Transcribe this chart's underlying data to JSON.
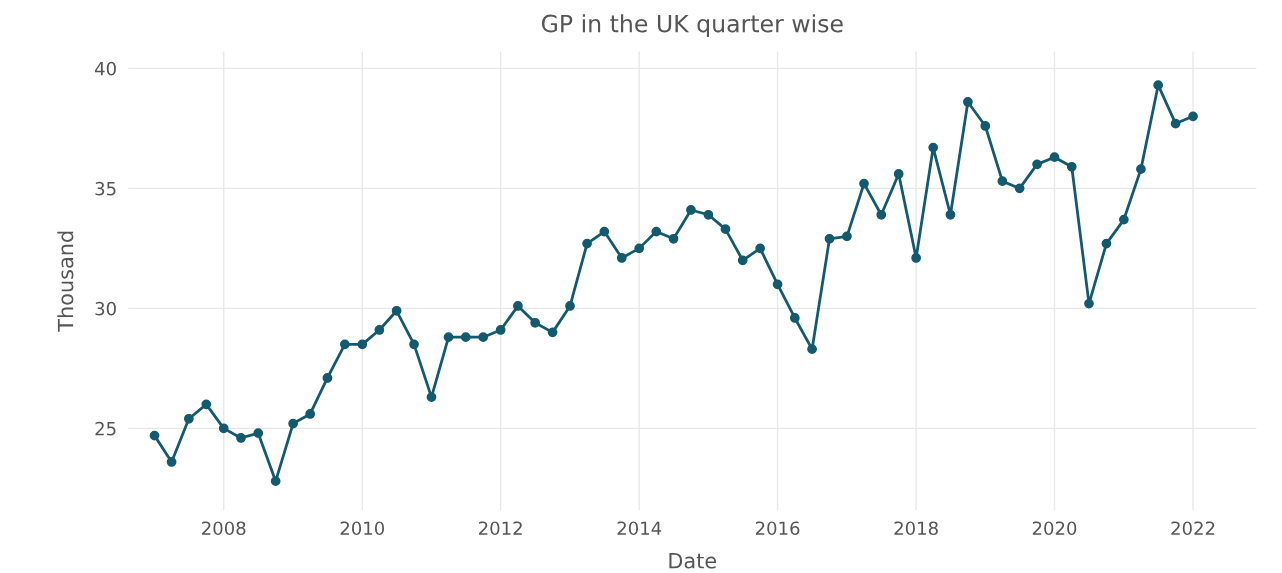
{
  "chart_data": {
    "type": "line",
    "title": "GP in the UK quarter wise",
    "xlabel": "Date",
    "ylabel": "Thousand",
    "x": [
      "2007-01",
      "2007-04",
      "2007-07",
      "2007-10",
      "2008-01",
      "2008-04",
      "2008-07",
      "2008-10",
      "2009-01",
      "2009-04",
      "2009-07",
      "2009-10",
      "2010-01",
      "2010-04",
      "2010-07",
      "2010-10",
      "2011-01",
      "2011-04",
      "2011-07",
      "2011-10",
      "2012-01",
      "2012-04",
      "2012-07",
      "2012-10",
      "2013-01",
      "2013-04",
      "2013-07",
      "2013-10",
      "2014-01",
      "2014-04",
      "2014-07",
      "2014-10",
      "2015-01",
      "2015-04",
      "2015-07",
      "2015-10",
      "2016-01",
      "2016-04",
      "2016-07",
      "2016-10",
      "2017-01",
      "2017-04",
      "2017-07",
      "2017-10",
      "2018-01",
      "2018-04",
      "2018-07",
      "2018-10",
      "2019-01",
      "2019-04",
      "2019-07",
      "2019-10",
      "2020-01",
      "2020-04",
      "2020-07",
      "2020-10",
      "2021-01",
      "2021-04",
      "2021-07",
      "2021-10",
      "2022-01"
    ],
    "series": [
      {
        "color": "#145a6e",
        "values": [
          24.7,
          23.6,
          25.4,
          26.0,
          25.0,
          24.6,
          24.8,
          22.8,
          25.2,
          25.6,
          27.1,
          28.5,
          28.5,
          29.1,
          29.9,
          28.5,
          26.3,
          28.8,
          28.8,
          28.8,
          29.1,
          30.1,
          29.4,
          29.0,
          30.1,
          32.7,
          33.2,
          32.1,
          32.5,
          33.2,
          32.9,
          34.1,
          33.9,
          33.3,
          32.0,
          32.5,
          31.0,
          29.6,
          28.3,
          32.9,
          33.0,
          35.2,
          33.9,
          35.6,
          32.1,
          36.7,
          33.9,
          38.6,
          37.6,
          35.3,
          35.0,
          36.0,
          36.3,
          35.9,
          30.2,
          32.7,
          33.7,
          35.8,
          39.3,
          37.7,
          38.0
        ]
      }
    ],
    "xlim": [
      "2006-08-15",
      "2022-12-01"
    ],
    "xticks": [
      {
        "value": "2008-01-01",
        "label": "2008"
      },
      {
        "value": "2010-01-01",
        "label": "2010"
      },
      {
        "value": "2012-01-01",
        "label": "2012"
      },
      {
        "value": "2014-01-01",
        "label": "2014"
      },
      {
        "value": "2016-01-01",
        "label": "2016"
      },
      {
        "value": "2018-01-01",
        "label": "2018"
      },
      {
        "value": "2020-01-01",
        "label": "2020"
      },
      {
        "value": "2022-01-01",
        "label": "2022"
      }
    ],
    "ylim": [
      21.6,
      40.7
    ],
    "yticks": [
      25,
      30,
      35,
      40
    ],
    "grid": true,
    "marker": "circle",
    "line_style": "solid"
  }
}
